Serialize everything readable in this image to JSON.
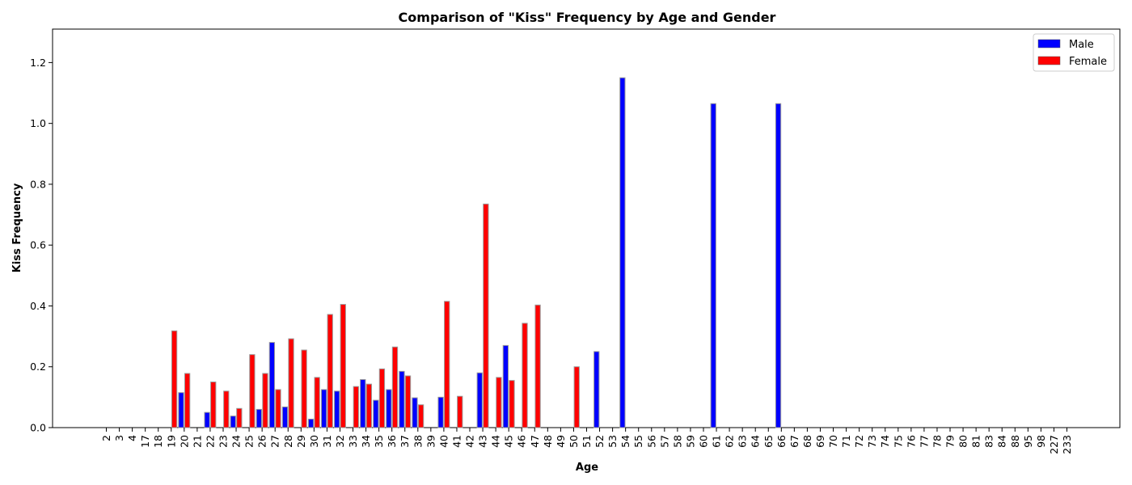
{
  "chart_data": {
    "type": "bar",
    "title": "Comparison of \"Kiss\" Frequency by Age and Gender",
    "xlabel": "Age",
    "ylabel": "Kiss Frequency",
    "ylim": [
      0,
      1.2
    ],
    "yticks": [
      "0.0",
      "0.2",
      "0.4",
      "0.6",
      "0.8",
      "1.0",
      "1.2"
    ],
    "grid": false,
    "legend_position": "top-right",
    "categories": [
      "2",
      "3",
      "4",
      "17",
      "18",
      "19",
      "20",
      "21",
      "22",
      "23",
      "24",
      "25",
      "26",
      "27",
      "28",
      "29",
      "30",
      "31",
      "32",
      "33",
      "34",
      "35",
      "36",
      "37",
      "38",
      "39",
      "40",
      "41",
      "42",
      "43",
      "44",
      "45",
      "46",
      "47",
      "48",
      "49",
      "50",
      "51",
      "52",
      "53",
      "54",
      "55",
      "56",
      "57",
      "58",
      "59",
      "60",
      "61",
      "62",
      "63",
      "64",
      "65",
      "66",
      "67",
      "68",
      "69",
      "70",
      "71",
      "72",
      "73",
      "74",
      "75",
      "76",
      "77",
      "78",
      "79",
      "80",
      "81",
      "83",
      "84",
      "88",
      "95",
      "98",
      "227",
      "233"
    ],
    "series": [
      {
        "name": "Male",
        "color": "#0000ff",
        "values": [
          0,
          0,
          0,
          0,
          0,
          0,
          0.115,
          0,
          0.05,
          0,
          0.038,
          0,
          0.06,
          0.28,
          0.068,
          0,
          0.028,
          0.125,
          0.12,
          0,
          0.158,
          0.09,
          0.125,
          0.185,
          0.098,
          0,
          0.1,
          0,
          0,
          0.18,
          0,
          0.27,
          0,
          0,
          0,
          0,
          0,
          0,
          0.25,
          0,
          1.15,
          0,
          0,
          0,
          0,
          0,
          0,
          1.065,
          0,
          0,
          0,
          0,
          1.065,
          0,
          0,
          0,
          0,
          0,
          0,
          0,
          0,
          0,
          0,
          0,
          0,
          0,
          0,
          0,
          0,
          0,
          0,
          0,
          0,
          0,
          0
        ]
      },
      {
        "name": "Female",
        "color": "#ff0000",
        "values": [
          0,
          0,
          0,
          0,
          0,
          0.318,
          0.178,
          0,
          0.15,
          0.12,
          0.063,
          0.24,
          0.178,
          0.125,
          0.292,
          0.255,
          0.165,
          0.372,
          0.405,
          0.135,
          0.143,
          0.193,
          0.265,
          0.17,
          0.075,
          0,
          0.415,
          0.103,
          0,
          0.735,
          0.165,
          0.155,
          0.343,
          0.403,
          0,
          0,
          0.2,
          0,
          0,
          0,
          0,
          0,
          0,
          0,
          0,
          0,
          0,
          0,
          0,
          0,
          0,
          0,
          0,
          0,
          0,
          0,
          0,
          0,
          0,
          0,
          0,
          0,
          0,
          0,
          0,
          0,
          0,
          0,
          0,
          0,
          0,
          0,
          0,
          0,
          0
        ]
      }
    ]
  }
}
